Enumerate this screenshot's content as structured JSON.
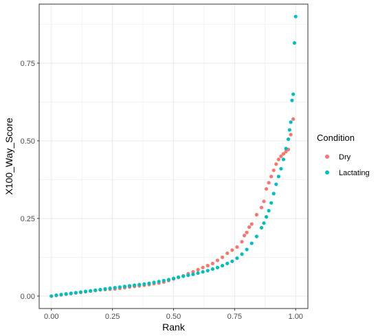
{
  "chart_data": {
    "type": "scatter",
    "xlabel": "Rank",
    "ylabel": "X100_Way_Score",
    "xlim": [
      -0.05,
      1.05
    ],
    "ylim": [
      -0.04,
      0.94
    ],
    "x_ticks": [
      0.0,
      0.25,
      0.5,
      0.75,
      1.0
    ],
    "x_tick_labels": [
      "0.00",
      "0.25",
      "0.50",
      "0.75",
      "1.00"
    ],
    "y_ticks": [
      0.0,
      0.25,
      0.5,
      0.75
    ],
    "y_tick_labels": [
      "0.00",
      "0.25",
      "0.50",
      "0.75"
    ],
    "grid": true,
    "legend": {
      "title": "Condition",
      "position": "right"
    },
    "series": [
      {
        "name": "Dry",
        "color": "#F8766D",
        "points": [
          [
            0.0,
            0.0
          ],
          [
            0.02,
            0.002
          ],
          [
            0.04,
            0.004
          ],
          [
            0.06,
            0.006
          ],
          [
            0.08,
            0.008
          ],
          [
            0.1,
            0.01
          ],
          [
            0.12,
            0.012
          ],
          [
            0.14,
            0.014
          ],
          [
            0.16,
            0.016
          ],
          [
            0.18,
            0.018
          ],
          [
            0.2,
            0.02
          ],
          [
            0.22,
            0.021
          ],
          [
            0.24,
            0.022
          ],
          [
            0.26,
            0.023
          ],
          [
            0.28,
            0.025
          ],
          [
            0.3,
            0.027
          ],
          [
            0.32,
            0.029
          ],
          [
            0.34,
            0.031
          ],
          [
            0.36,
            0.033
          ],
          [
            0.38,
            0.035
          ],
          [
            0.4,
            0.037
          ],
          [
            0.42,
            0.04
          ],
          [
            0.44,
            0.042
          ],
          [
            0.46,
            0.045
          ],
          [
            0.48,
            0.05
          ],
          [
            0.5,
            0.055
          ],
          [
            0.52,
            0.06
          ],
          [
            0.54,
            0.065
          ],
          [
            0.56,
            0.072
          ],
          [
            0.58,
            0.078
          ],
          [
            0.6,
            0.085
          ],
          [
            0.62,
            0.092
          ],
          [
            0.64,
            0.098
          ],
          [
            0.66,
            0.105
          ],
          [
            0.68,
            0.115
          ],
          [
            0.7,
            0.125
          ],
          [
            0.72,
            0.138
          ],
          [
            0.74,
            0.148
          ],
          [
            0.76,
            0.158
          ],
          [
            0.78,
            0.175
          ],
          [
            0.79,
            0.195
          ],
          [
            0.8,
            0.205
          ],
          [
            0.81,
            0.222
          ],
          [
            0.82,
            0.232
          ],
          [
            0.84,
            0.262
          ],
          [
            0.86,
            0.285
          ],
          [
            0.87,
            0.305
          ],
          [
            0.88,
            0.345
          ],
          [
            0.89,
            0.365
          ],
          [
            0.9,
            0.385
          ],
          [
            0.91,
            0.405
          ],
          [
            0.92,
            0.425
          ],
          [
            0.93,
            0.44
          ],
          [
            0.94,
            0.45
          ],
          [
            0.95,
            0.458
          ],
          [
            0.96,
            0.465
          ],
          [
            0.97,
            0.472
          ],
          [
            0.98,
            0.52
          ],
          [
            0.99,
            0.57
          ]
        ]
      },
      {
        "name": "Lactating",
        "color": "#00BFC4",
        "points": [
          [
            0.0,
            0.0
          ],
          [
            0.02,
            0.003
          ],
          [
            0.04,
            0.005
          ],
          [
            0.06,
            0.007
          ],
          [
            0.08,
            0.009
          ],
          [
            0.1,
            0.011
          ],
          [
            0.12,
            0.013
          ],
          [
            0.14,
            0.015
          ],
          [
            0.16,
            0.017
          ],
          [
            0.18,
            0.019
          ],
          [
            0.2,
            0.021
          ],
          [
            0.22,
            0.023
          ],
          [
            0.24,
            0.025
          ],
          [
            0.26,
            0.027
          ],
          [
            0.28,
            0.029
          ],
          [
            0.3,
            0.031
          ],
          [
            0.32,
            0.033
          ],
          [
            0.34,
            0.035
          ],
          [
            0.36,
            0.037
          ],
          [
            0.38,
            0.039
          ],
          [
            0.4,
            0.041
          ],
          [
            0.42,
            0.044
          ],
          [
            0.44,
            0.047
          ],
          [
            0.46,
            0.05
          ],
          [
            0.48,
            0.053
          ],
          [
            0.5,
            0.057
          ],
          [
            0.52,
            0.061
          ],
          [
            0.54,
            0.064
          ],
          [
            0.56,
            0.067
          ],
          [
            0.58,
            0.07
          ],
          [
            0.6,
            0.074
          ],
          [
            0.62,
            0.078
          ],
          [
            0.64,
            0.082
          ],
          [
            0.66,
            0.087
          ],
          [
            0.68,
            0.092
          ],
          [
            0.7,
            0.098
          ],
          [
            0.72,
            0.105
          ],
          [
            0.74,
            0.112
          ],
          [
            0.76,
            0.122
          ],
          [
            0.78,
            0.135
          ],
          [
            0.8,
            0.15
          ],
          [
            0.82,
            0.17
          ],
          [
            0.84,
            0.192
          ],
          [
            0.86,
            0.22
          ],
          [
            0.87,
            0.235
          ],
          [
            0.88,
            0.255
          ],
          [
            0.89,
            0.275
          ],
          [
            0.9,
            0.3
          ],
          [
            0.91,
            0.33
          ],
          [
            0.92,
            0.36
          ],
          [
            0.93,
            0.385
          ],
          [
            0.94,
            0.41
          ],
          [
            0.95,
            0.44
          ],
          [
            0.96,
            0.475
          ],
          [
            0.97,
            0.505
          ],
          [
            0.975,
            0.535
          ],
          [
            0.98,
            0.56
          ],
          [
            0.985,
            0.63
          ],
          [
            0.99,
            0.65
          ],
          [
            0.995,
            0.815
          ],
          [
            1.0,
            0.9
          ]
        ]
      }
    ]
  }
}
